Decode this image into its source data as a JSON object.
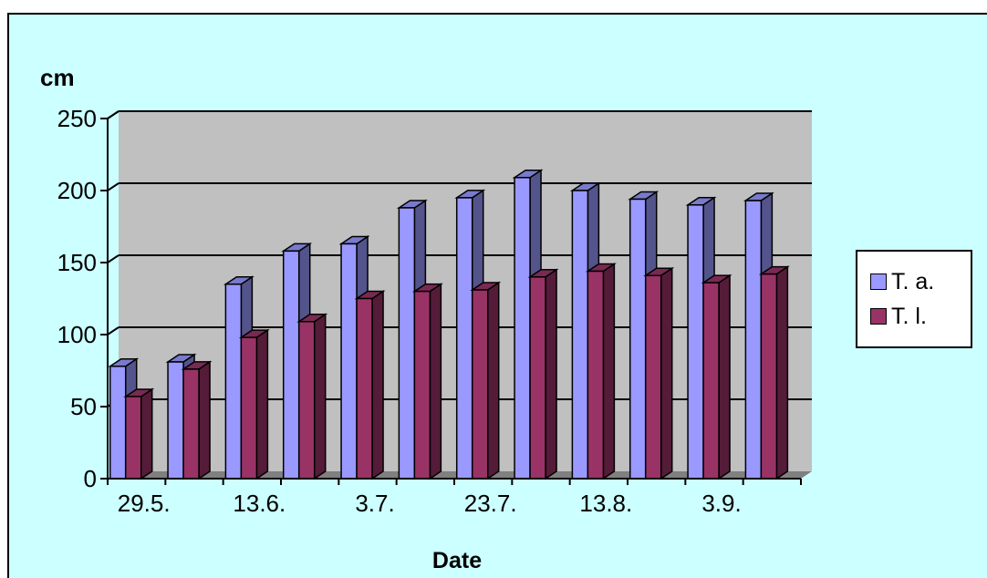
{
  "chart_data": {
    "type": "bar",
    "title": "",
    "ylabel": "cm",
    "xlabel": "Date",
    "ylim": [
      0,
      250
    ],
    "yticks": [
      0,
      50,
      100,
      150,
      200,
      250
    ],
    "grid": true,
    "legend_position": "right",
    "x_tick_labels": [
      "29.5.",
      "",
      "13.6.",
      "",
      "3.7.",
      "",
      "23.7.",
      "",
      "13.8.",
      "",
      "3.9.",
      ""
    ],
    "series": [
      {
        "name": "T. a.",
        "color": "#9999ff",
        "values": [
          78,
          81,
          135,
          158,
          163,
          188,
          195,
          209,
          200,
          194,
          190,
          193
        ]
      },
      {
        "name": "T. l.",
        "color": "#993366",
        "values": [
          57,
          76,
          98,
          109,
          125,
          130,
          131,
          140,
          144,
          141,
          136,
          142
        ]
      }
    ]
  },
  "colors": {
    "background": "#ccffff",
    "plot_wall": "#c0c0c0",
    "floor": "#808080"
  }
}
